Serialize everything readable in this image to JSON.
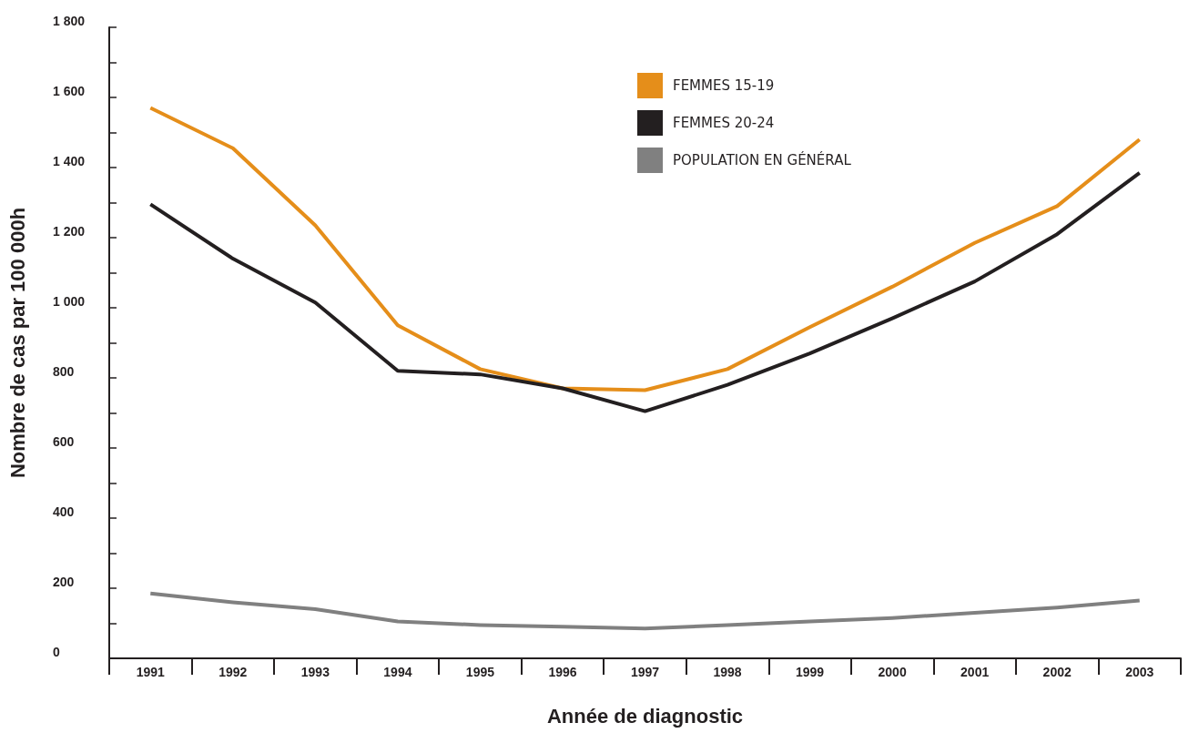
{
  "chart_data": {
    "type": "line",
    "xlabel": "Année de diagnostic",
    "ylabel": "Nombre de cas par 100 000h",
    "categories": [
      "1991",
      "1992",
      "1993",
      "1994",
      "1995",
      "1996",
      "1997",
      "1998",
      "1999",
      "2000",
      "2001",
      "2002",
      "2003"
    ],
    "series": [
      {
        "name": "FEMMES 15-19",
        "color": "#e58e1a",
        "values": [
          1570,
          1455,
          1235,
          950,
          825,
          770,
          765,
          825,
          945,
          1060,
          1185,
          1290,
          1480
        ]
      },
      {
        "name": "FEMMES 20-24",
        "color": "#231f20",
        "values": [
          1295,
          1140,
          1015,
          820,
          810,
          770,
          705,
          780,
          870,
          970,
          1075,
          1210,
          1385
        ]
      },
      {
        "name": "POPULATION EN GÉNÉRAL",
        "color": "#808080",
        "values": [
          185,
          160,
          140,
          105,
          95,
          90,
          85,
          95,
          105,
          115,
          130,
          145,
          165
        ]
      }
    ],
    "ylim": [
      0,
      1800
    ],
    "yticks": [
      {
        "value": 0,
        "label": "0"
      },
      {
        "value": 100,
        "label": null
      },
      {
        "value": 200,
        "label": "200"
      },
      {
        "value": 300,
        "label": null
      },
      {
        "value": 400,
        "label": "400"
      },
      {
        "value": 500,
        "label": null
      },
      {
        "value": 600,
        "label": "600"
      },
      {
        "value": 700,
        "label": null
      },
      {
        "value": 800,
        "label": "800"
      },
      {
        "value": 900,
        "label": null
      },
      {
        "value": 1000,
        "label": "1 000"
      },
      {
        "value": 1100,
        "label": null
      },
      {
        "value": 1200,
        "label": "1 200"
      },
      {
        "value": 1300,
        "label": null
      },
      {
        "value": 1400,
        "label": "1 400"
      },
      {
        "value": 1500,
        "label": null
      },
      {
        "value": 1600,
        "label": "1 600"
      },
      {
        "value": 1700,
        "label": null
      },
      {
        "value": 1800,
        "label": "1 800"
      }
    ],
    "grid": false,
    "legend": "top right",
    "marker": "none",
    "line_style": "solid"
  }
}
